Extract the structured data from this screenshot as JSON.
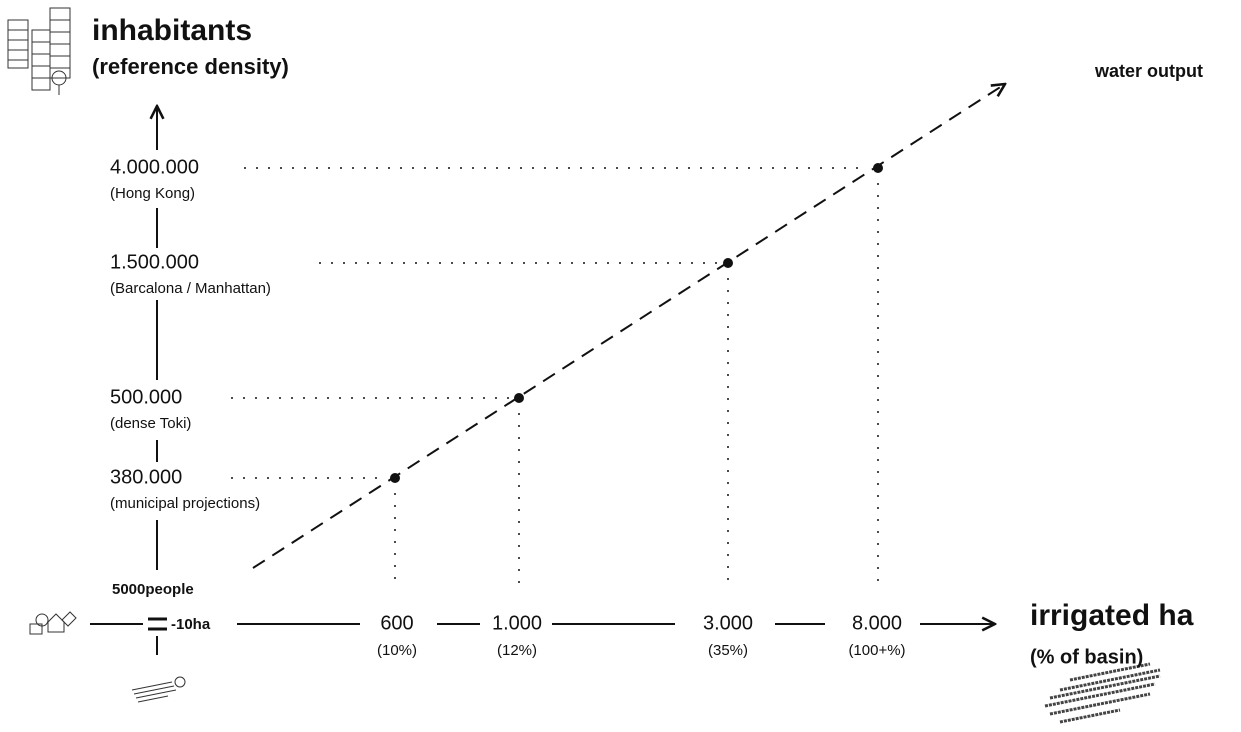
{
  "y_axis": {
    "title": "inhabitants",
    "subtitle": "(reference density)",
    "ticks": [
      {
        "label": "4.000.000",
        "note": "(Hong Kong)"
      },
      {
        "label": "1.500.000",
        "note": "(Barcalona / Manhattan)"
      },
      {
        "label": "500.000",
        "note": "(dense Toki)"
      },
      {
        "label": "380.000",
        "note": "(municipal projections)"
      }
    ]
  },
  "x_axis": {
    "title": "irrigated ha",
    "subtitle": "(% of basin)",
    "ticks": [
      {
        "label": "600",
        "note": "(10%)"
      },
      {
        "label": "1.000",
        "note": "(12%)"
      },
      {
        "label": "3.000",
        "note": "(35%)"
      },
      {
        "label": "8.000",
        "note": "(100+%)"
      }
    ]
  },
  "origin": {
    "people": "5000people",
    "equals": "=",
    "area": "-10ha"
  },
  "line_label": "water output"
}
